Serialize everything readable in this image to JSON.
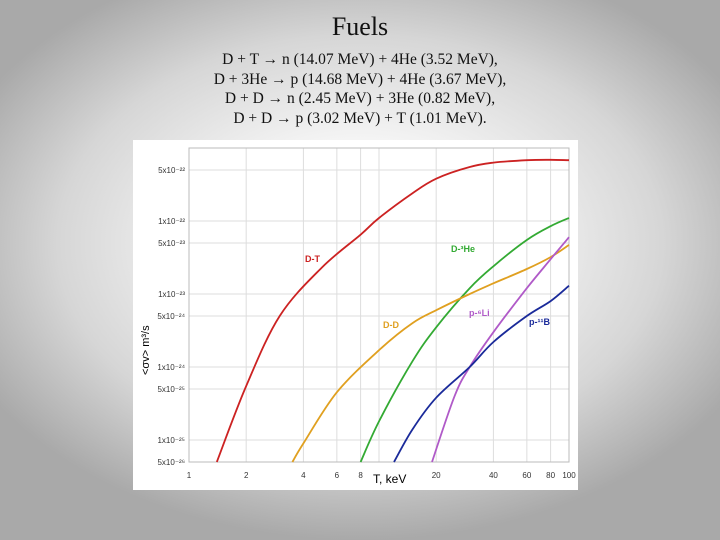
{
  "slide": {
    "title": "Fuels",
    "reactions": [
      "D + T → n (14.07 MeV) + 4He (3.52 MeV),",
      "D + 3He → p (14.68 MeV) + 4He (3.67 MeV),",
      "D + D → n (2.45 MeV) + 3He (0.82 MeV),",
      "D + D → p (3.02 MeV) + T (1.01 MeV)."
    ]
  },
  "chart_data": {
    "type": "line",
    "xlabel": "T, keV",
    "ylabel": "<σv> m³/s",
    "xscale": "log",
    "yscale": "log",
    "xlim": [
      1,
      100
    ],
    "ylim": [
      5e-26,
      1e-21
    ],
    "x_ticks": [
      1,
      2,
      4,
      6,
      8,
      10,
      20,
      40,
      60,
      80,
      100
    ],
    "y_ticks": [
      {
        "value": 5e-22,
        "label": "5x10⁻²²"
      },
      {
        "value": 1e-22,
        "label": "1x10⁻²²"
      },
      {
        "value": 5e-23,
        "label": "5x10⁻²³"
      },
      {
        "value": 1e-23,
        "label": "1x10⁻²³"
      },
      {
        "value": 5e-24,
        "label": "5x10⁻²⁴"
      },
      {
        "value": 1e-24,
        "label": "1x10⁻²⁴"
      },
      {
        "value": 5e-25,
        "label": "5x10⁻²⁵"
      },
      {
        "value": 1e-25,
        "label": "1x10⁻²⁵"
      },
      {
        "value": 5e-26,
        "label": "5x10⁻²⁶"
      }
    ],
    "grid": true,
    "series": [
      {
        "name": "D-T",
        "label": "D-T",
        "color": "#cc2222",
        "points": [
          [
            1.4,
            5e-26
          ],
          [
            2,
            5.5e-25
          ],
          [
            3,
            5e-24
          ],
          [
            5,
            2.3e-23
          ],
          [
            8,
            6.5e-23
          ],
          [
            10,
            1.1e-22
          ],
          [
            15,
            2.4e-22
          ],
          [
            20,
            3.8e-22
          ],
          [
            30,
            5.5e-22
          ],
          [
            40,
            6.3e-22
          ],
          [
            60,
            6.8e-22
          ],
          [
            80,
            6.9e-22
          ],
          [
            100,
            6.8e-22
          ]
        ]
      },
      {
        "name": "D-3He",
        "label": "D-³He",
        "color": "#33aa33",
        "points": [
          [
            8,
            5e-26
          ],
          [
            10,
            1.8e-25
          ],
          [
            15,
            1.2e-24
          ],
          [
            20,
            3.5e-24
          ],
          [
            30,
            1.2e-23
          ],
          [
            40,
            2.4e-23
          ],
          [
            60,
            5.5e-23
          ],
          [
            80,
            8.5e-23
          ],
          [
            100,
            1.1e-22
          ]
        ]
      },
      {
        "name": "D-D",
        "label": "D-D",
        "color": "#e0a020",
        "points": [
          [
            3.5,
            5e-26
          ],
          [
            4,
            9e-26
          ],
          [
            6,
            4.5e-25
          ],
          [
            10,
            1.7e-24
          ],
          [
            15,
            4e-24
          ],
          [
            20,
            6e-24
          ],
          [
            30,
            1e-23
          ],
          [
            40,
            1.4e-23
          ],
          [
            60,
            2.2e-23
          ],
          [
            80,
            3.2e-23
          ],
          [
            100,
            4.7e-23
          ]
        ]
      },
      {
        "name": "p-6Li",
        "label": "p-⁶Li",
        "color": "#b05ac8",
        "points": [
          [
            19,
            5e-26
          ],
          [
            25,
            4e-25
          ],
          [
            30,
            1e-24
          ],
          [
            40,
            3e-24
          ],
          [
            60,
            1.2e-23
          ],
          [
            80,
            3e-23
          ],
          [
            100,
            6e-23
          ]
        ]
      },
      {
        "name": "p-11B",
        "label": "p-¹¹B",
        "color": "#1a2a9a",
        "points": [
          [
            12,
            5e-26
          ],
          [
            15,
            1.4e-25
          ],
          [
            20,
            3.8e-25
          ],
          [
            30,
            1e-24
          ],
          [
            40,
            2.2e-24
          ],
          [
            60,
            5e-24
          ],
          [
            80,
            8e-24
          ],
          [
            100,
            1.3e-23
          ]
        ]
      }
    ]
  }
}
